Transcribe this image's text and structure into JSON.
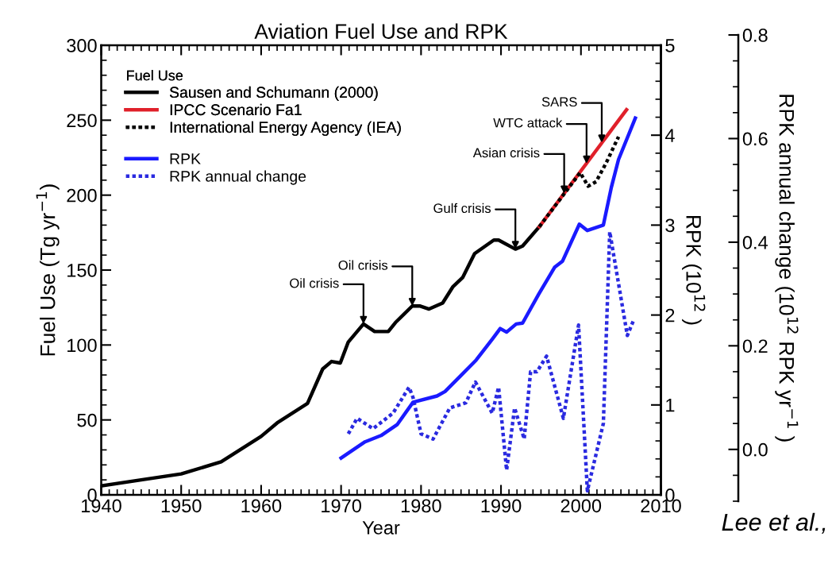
{
  "chart_data": {
    "type": "line",
    "title": "Aviation Fuel Use and RPK",
    "xlabel": "Year",
    "ylabel": "Fuel Use (Tg yr$^{−1}$)",
    "y2label": "RPK (10$^{12}$ )",
    "y3label": "RPK annual change (10$^{12}$ RPK yr$^{−1}$ )",
    "legend_title": "Fuel Use",
    "legend": "top left",
    "grid": false,
    "xlim": [
      1940,
      2010
    ],
    "xticks": [
      1940,
      1950,
      1960,
      1970,
      1980,
      1990,
      2000,
      2010
    ],
    "ylim": [
      0,
      300
    ],
    "yticks": [
      0,
      50,
      100,
      150,
      200,
      250,
      300
    ],
    "y2lim": [
      0,
      5
    ],
    "y2ticks": [
      0,
      1,
      2,
      3,
      4,
      5
    ],
    "y3lim": [
      -0.1,
      0.8
    ],
    "y3ticks": [
      {
        "value": 0,
        "label": "0.0"
      },
      {
        "value": 0.2,
        "label": "0.2"
      },
      {
        "value": 0.4,
        "label": "0.4"
      },
      {
        "value": 0.6,
        "label": "0.6"
      },
      {
        "value": 0.8,
        "label": "0.8"
      }
    ],
    "series": [
      {
        "name": "Sausen and Schumann (2000)",
        "color": "#000000",
        "axis": "y",
        "line_style": "solid",
        "x": [
          1940,
          1945,
          1950,
          1955,
          1960,
          1962,
          1965.8,
          1967.7,
          1968.8,
          1969.9,
          1970.9,
          1972.8,
          1974.2,
          1975.9,
          1976.8,
          1978.9,
          1979.9,
          1981,
          1982.7,
          1984,
          1985.2,
          1986.7,
          1989.1,
          1989.7,
          1991.8,
          1992.7,
          1994.8
        ],
        "values": [
          6,
          10,
          14,
          22,
          39,
          48,
          61,
          84,
          89,
          88,
          102,
          114,
          109,
          109,
          115,
          126,
          126,
          124,
          128,
          139,
          145,
          161,
          170,
          170,
          164,
          166,
          179
        ]
      },
      {
        "name": "IPCC Scenario Fa1",
        "color": "#e0202a",
        "axis": "y",
        "line_style": "solid",
        "x": [
          1994.8,
          2005.7
        ],
        "values": [
          179,
          257
        ]
      },
      {
        "name": "International Energy Agency (IEA)",
        "color": "#000000",
        "axis": "y",
        "line_style": "dotted",
        "x": [
          1994.8,
          1999.9,
          2000.9,
          2001.9,
          2003.2,
          2004.7
        ],
        "values": [
          179,
          215,
          206,
          209,
          222,
          239
        ]
      },
      {
        "name": "RPK",
        "color": "#1a1aff",
        "axis": "y2",
        "line_style": "solid",
        "x": [
          1970,
          1973,
          1975,
          1977,
          1979,
          1982,
          1983,
          1984.9,
          1986.9,
          1988.9,
          1989.9,
          1990.7,
          1991.9,
          1992.7,
          1994.7,
          1996.7,
          1997.7,
          1999.8,
          2000.8,
          2002.8,
          2003.8,
          2004.7,
          2006.8
        ],
        "values": [
          0.41,
          0.59,
          0.66,
          0.78,
          1.03,
          1.1,
          1.15,
          1.32,
          1.5,
          1.73,
          1.85,
          1.81,
          1.9,
          1.91,
          2.23,
          2.53,
          2.6,
          3.01,
          2.94,
          3.0,
          3.42,
          3.73,
          4.19
        ]
      },
      {
        "name": "RPK annual change",
        "color": "#2a2ae0",
        "axis": "y3",
        "line_style": "dotted",
        "x": [
          1970.9,
          1972,
          1974,
          1976.5,
          1978.5,
          1979,
          1980,
          1981.5,
          1983.6,
          1985.6,
          1986.8,
          1988.9,
          1989.7,
          1990.7,
          1991.7,
          1992.9,
          1993.7,
          1994.5,
          1995.7,
          1997.8,
          1999.7,
          2000.8,
          2002.8,
          2003.6,
          2005.8,
          2006.6
        ],
        "values": [
          0.03,
          0.06,
          0.04,
          0.07,
          0.12,
          0.1,
          0.03,
          0.02,
          0.08,
          0.09,
          0.13,
          0.07,
          0.12,
          -0.04,
          0.08,
          0.02,
          0.15,
          0.15,
          0.18,
          0.06,
          0.24,
          -0.08,
          0.05,
          0.42,
          0.22,
          0.25
        ]
      }
    ],
    "annotations": [
      {
        "text": "Oil crisis",
        "x": 1972.8,
        "y": 114
      },
      {
        "text": "Oil crisis",
        "x": 1978.9,
        "y": 126
      },
      {
        "text": "Gulf crisis",
        "x": 1991.8,
        "y": 164
      },
      {
        "text": "Asian crisis",
        "x": 1997.9,
        "y": 201
      },
      {
        "text": "WTC attack",
        "x": 2000.7,
        "y": 221
      },
      {
        "text": "SARS",
        "x": 2002.6,
        "y": 235
      },
      "Lee et al.,"
    ]
  }
}
